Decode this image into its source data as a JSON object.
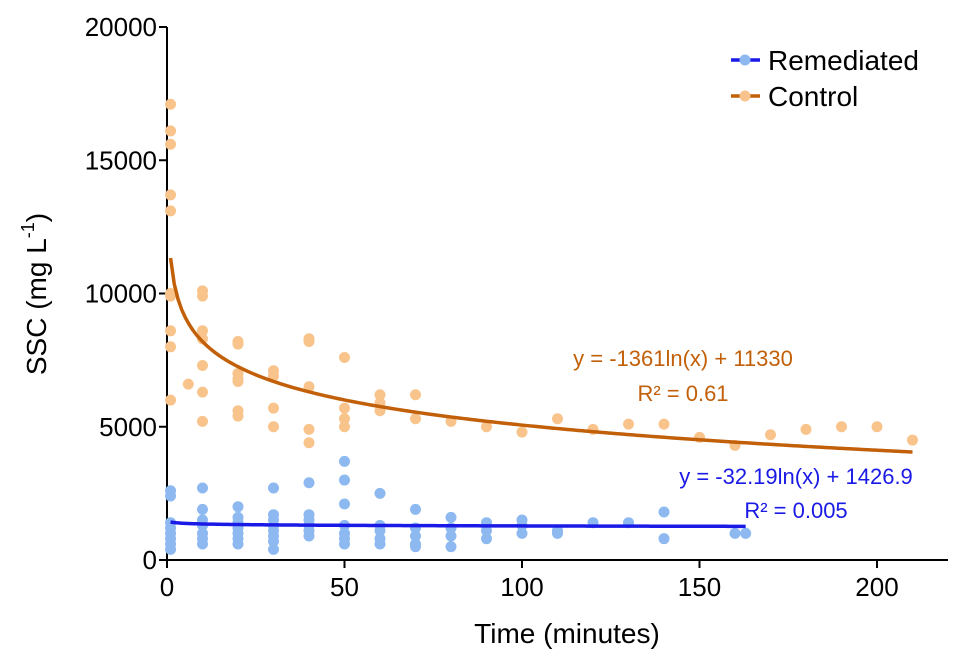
{
  "chart_data": {
    "type": "scatter",
    "xlabel": "Time (minutes)",
    "ylabel": "SSC (mg L",
    "ylabel_superscript": "-1",
    "ylabel_close": ")",
    "xlim": [
      0,
      220
    ],
    "ylim": [
      0,
      20000
    ],
    "xticks": [
      0,
      50,
      100,
      150,
      200
    ],
    "yticks": [
      0,
      5000,
      10000,
      15000,
      20000
    ],
    "grid": false,
    "legend_position": "top-right",
    "series": [
      {
        "name": "Remediated",
        "marker_color": "#8db9f0",
        "line_color": "#1a1ae6",
        "trendline": {
          "a": -32.19,
          "b": 1426.9,
          "x_range": [
            1,
            163
          ]
        },
        "equation": "y = -32.19ln(x) + 1426.9",
        "r2": "R² = 0.005",
        "points": [
          [
            1,
            2600
          ],
          [
            1,
            2400
          ],
          [
            1,
            1400
          ],
          [
            1,
            1200
          ],
          [
            1,
            1000
          ],
          [
            1,
            800
          ],
          [
            1,
            600
          ],
          [
            1,
            400
          ],
          [
            10,
            2700
          ],
          [
            10,
            1900
          ],
          [
            10,
            1500
          ],
          [
            10,
            1300
          ],
          [
            10,
            1000
          ],
          [
            10,
            800
          ],
          [
            10,
            600
          ],
          [
            20,
            2000
          ],
          [
            20,
            1600
          ],
          [
            20,
            1400
          ],
          [
            20,
            1200
          ],
          [
            20,
            1000
          ],
          [
            20,
            800
          ],
          [
            20,
            600
          ],
          [
            30,
            2700
          ],
          [
            30,
            1700
          ],
          [
            30,
            1500
          ],
          [
            30,
            1300
          ],
          [
            30,
            1100
          ],
          [
            30,
            900
          ],
          [
            30,
            700
          ],
          [
            30,
            400
          ],
          [
            40,
            2900
          ],
          [
            40,
            1700
          ],
          [
            40,
            1500
          ],
          [
            40,
            1300
          ],
          [
            40,
            1100
          ],
          [
            40,
            900
          ],
          [
            50,
            3700
          ],
          [
            50,
            3000
          ],
          [
            50,
            2100
          ],
          [
            50,
            1300
          ],
          [
            50,
            1000
          ],
          [
            50,
            800
          ],
          [
            50,
            600
          ],
          [
            60,
            2500
          ],
          [
            60,
            1300
          ],
          [
            60,
            1100
          ],
          [
            60,
            800
          ],
          [
            60,
            600
          ],
          [
            70,
            1900
          ],
          [
            70,
            1200
          ],
          [
            70,
            900
          ],
          [
            70,
            600
          ],
          [
            70,
            500
          ],
          [
            80,
            1600
          ],
          [
            80,
            1200
          ],
          [
            80,
            900
          ],
          [
            80,
            500
          ],
          [
            90,
            1400
          ],
          [
            90,
            1100
          ],
          [
            90,
            800
          ],
          [
            100,
            1500
          ],
          [
            100,
            1300
          ],
          [
            100,
            1000
          ],
          [
            110,
            1100
          ],
          [
            110,
            1000
          ],
          [
            120,
            1400
          ],
          [
            130,
            1400
          ],
          [
            140,
            1800
          ],
          [
            140,
            800
          ],
          [
            160,
            1000
          ],
          [
            163,
            1000
          ]
        ]
      },
      {
        "name": "Control",
        "marker_color": "#f9c48c",
        "line_color": "#c2600a",
        "trendline": {
          "a": -1361,
          "b": 11330,
          "x_range": [
            1,
            210
          ]
        },
        "equation": "y = -1361ln(x) + 11330",
        "r2": "R² = 0.61",
        "points": [
          [
            1,
            17100
          ],
          [
            1,
            16100
          ],
          [
            1,
            15600
          ],
          [
            1,
            13700
          ],
          [
            1,
            13100
          ],
          [
            1,
            10000
          ],
          [
            1,
            9900
          ],
          [
            1,
            8600
          ],
          [
            1,
            8000
          ],
          [
            1,
            6000
          ],
          [
            6,
            6600
          ],
          [
            10,
            10100
          ],
          [
            10,
            9900
          ],
          [
            10,
            8600
          ],
          [
            10,
            8300
          ],
          [
            10,
            7300
          ],
          [
            10,
            6300
          ],
          [
            10,
            5200
          ],
          [
            20,
            8200
          ],
          [
            20,
            8100
          ],
          [
            20,
            7000
          ],
          [
            20,
            6800
          ],
          [
            20,
            6700
          ],
          [
            20,
            5600
          ],
          [
            20,
            5400
          ],
          [
            30,
            7100
          ],
          [
            30,
            6900
          ],
          [
            30,
            5700
          ],
          [
            30,
            5000
          ],
          [
            40,
            8300
          ],
          [
            40,
            8200
          ],
          [
            40,
            6500
          ],
          [
            40,
            4900
          ],
          [
            40,
            4400
          ],
          [
            50,
            7600
          ],
          [
            50,
            5700
          ],
          [
            50,
            5300
          ],
          [
            50,
            5000
          ],
          [
            60,
            6200
          ],
          [
            60,
            5900
          ],
          [
            60,
            5600
          ],
          [
            70,
            6200
          ],
          [
            70,
            5300
          ],
          [
            80,
            5200
          ],
          [
            90,
            5000
          ],
          [
            100,
            4800
          ],
          [
            110,
            5300
          ],
          [
            120,
            4900
          ],
          [
            130,
            5100
          ],
          [
            140,
            5100
          ],
          [
            150,
            4600
          ],
          [
            160,
            4300
          ],
          [
            170,
            4700
          ],
          [
            180,
            4900
          ],
          [
            190,
            5000
          ],
          [
            200,
            5000
          ],
          [
            210,
            4500
          ]
        ]
      }
    ]
  }
}
